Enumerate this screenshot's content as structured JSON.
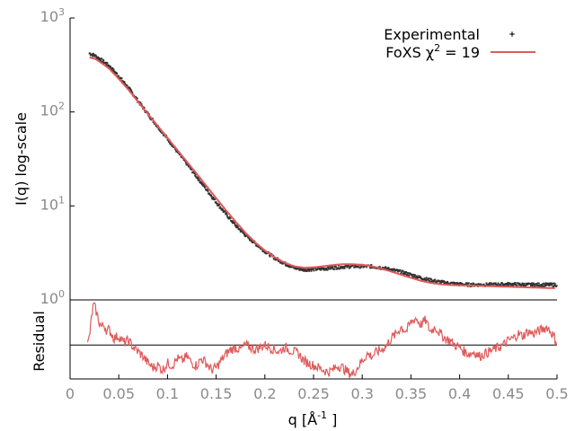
{
  "chart_data": [
    {
      "type": "line",
      "panel": "main",
      "xlim": [
        0,
        0.5
      ],
      "ylim": [
        1,
        1000
      ],
      "yscale": "log",
      "ylabel": "I(q) log-scale",
      "ytick_labels": [
        {
          "value": 1,
          "base": "10",
          "exp": "0"
        },
        {
          "value": 10,
          "base": "10",
          "exp": "1"
        },
        {
          "value": 100,
          "base": "10",
          "exp": "2"
        },
        {
          "value": 1000,
          "base": "10",
          "exp": "3"
        }
      ],
      "legend": {
        "placement": "top-right",
        "experimental_label": "Experimental",
        "fit_label_prefix": "FoXS χ",
        "fit_label_exp": "2",
        "fit_label_suffix": " = 19"
      },
      "colors": {
        "experimental": "#333333",
        "fit": "#e05a5a",
        "axis": "#000000",
        "ticks": "#8a8a8a"
      },
      "series": [
        {
          "name": "Experimental",
          "style": "points",
          "x": [
            0.02,
            0.025,
            0.03,
            0.04,
            0.05,
            0.06,
            0.07,
            0.08,
            0.09,
            0.1,
            0.11,
            0.12,
            0.13,
            0.14,
            0.15,
            0.16,
            0.17,
            0.18,
            0.19,
            0.2,
            0.21,
            0.22,
            0.23,
            0.24,
            0.25,
            0.26,
            0.27,
            0.28,
            0.29,
            0.3,
            0.31,
            0.32,
            0.33,
            0.34,
            0.35,
            0.36,
            0.37,
            0.38,
            0.39,
            0.4,
            0.41,
            0.42,
            0.43,
            0.44,
            0.45,
            0.46,
            0.47,
            0.48,
            0.49,
            0.5
          ],
          "values": [
            420,
            400,
            370,
            310,
            240,
            180,
            130,
            95,
            70,
            52,
            38,
            28,
            20.5,
            15,
            11,
            8.2,
            6.2,
            4.9,
            4.0,
            3.3,
            2.8,
            2.45,
            2.2,
            2.1,
            2.12,
            2.15,
            2.2,
            2.25,
            2.28,
            2.28,
            2.27,
            2.2,
            2.1,
            1.98,
            1.85,
            1.72,
            1.62,
            1.55,
            1.5,
            1.47,
            1.45,
            1.45,
            1.45,
            1.46,
            1.47,
            1.46,
            1.45,
            1.45,
            1.45,
            1.45
          ]
        },
        {
          "name": "FoXS",
          "style": "line",
          "x": [
            0.02,
            0.025,
            0.03,
            0.04,
            0.05,
            0.06,
            0.07,
            0.08,
            0.09,
            0.1,
            0.11,
            0.12,
            0.13,
            0.14,
            0.15,
            0.16,
            0.17,
            0.18,
            0.19,
            0.2,
            0.21,
            0.22,
            0.23,
            0.24,
            0.25,
            0.26,
            0.27,
            0.28,
            0.29,
            0.3,
            0.31,
            0.32,
            0.33,
            0.34,
            0.35,
            0.36,
            0.37,
            0.38,
            0.39,
            0.4,
            0.41,
            0.42,
            0.43,
            0.44,
            0.45,
            0.46,
            0.47,
            0.48,
            0.49,
            0.5
          ],
          "values": [
            380,
            370,
            345,
            290,
            225,
            172,
            128,
            95,
            71,
            53,
            39.5,
            29.5,
            22,
            16.3,
            12.1,
            9.0,
            6.8,
            5.2,
            4.1,
            3.35,
            2.85,
            2.5,
            2.28,
            2.2,
            2.22,
            2.28,
            2.35,
            2.4,
            2.4,
            2.36,
            2.28,
            2.15,
            2.0,
            1.85,
            1.72,
            1.6,
            1.52,
            1.47,
            1.44,
            1.43,
            1.42,
            1.41,
            1.4,
            1.39,
            1.38,
            1.37,
            1.36,
            1.35,
            1.34,
            1.33
          ]
        }
      ]
    },
    {
      "type": "line",
      "panel": "residual",
      "xlim": [
        0,
        0.5
      ],
      "ylim": [
        -1.5,
        2.0
      ],
      "xlabel_prefix": "q [Å",
      "xlabel_exp": "-1",
      "xlabel_suffix": " ]",
      "ylabel": "Residual",
      "xticks": [
        0,
        0.05,
        0.1,
        0.15,
        0.2,
        0.25,
        0.3,
        0.35,
        0.4,
        0.45,
        0.5
      ],
      "xtick_labels": [
        "0",
        "0.05",
        "0.1",
        "0.15",
        "0.2",
        "0.25",
        "0.3",
        "0.35",
        "0.4",
        "0.45",
        "0.5"
      ],
      "baseline": 0,
      "series": [
        {
          "x": [
            0.018,
            0.02,
            0.022,
            0.024,
            0.026,
            0.028,
            0.03,
            0.032,
            0.035,
            0.038,
            0.04,
            0.045,
            0.05,
            0.055,
            0.06,
            0.065,
            0.07,
            0.075,
            0.08,
            0.085,
            0.09,
            0.095,
            0.1,
            0.105,
            0.11,
            0.115,
            0.12,
            0.125,
            0.13,
            0.135,
            0.14,
            0.145,
            0.15,
            0.155,
            0.16,
            0.165,
            0.17,
            0.175,
            0.18,
            0.185,
            0.19,
            0.195,
            0.2,
            0.205,
            0.21,
            0.215,
            0.22,
            0.225,
            0.23,
            0.235,
            0.24,
            0.245,
            0.25,
            0.255,
            0.26,
            0.265,
            0.27,
            0.275,
            0.28,
            0.285,
            0.29,
            0.295,
            0.3,
            0.305,
            0.31,
            0.315,
            0.32,
            0.325,
            0.33,
            0.335,
            0.34,
            0.345,
            0.35,
            0.355,
            0.36,
            0.365,
            0.37,
            0.375,
            0.38,
            0.385,
            0.39,
            0.395,
            0.4,
            0.405,
            0.41,
            0.415,
            0.42,
            0.425,
            0.43,
            0.435,
            0.44,
            0.445,
            0.45,
            0.455,
            0.46,
            0.465,
            0.47,
            0.475,
            0.48,
            0.485,
            0.49,
            0.495,
            0.5
          ],
          "values": [
            0.0,
            0.4,
            1.2,
            1.8,
            1.6,
            1.3,
            1.0,
            0.8,
            0.9,
            0.6,
            0.7,
            0.3,
            0.4,
            0.1,
            0.2,
            -0.1,
            -0.3,
            -0.5,
            -0.8,
            -1.0,
            -0.9,
            -1.1,
            -0.8,
            -0.9,
            -0.6,
            -0.7,
            -0.5,
            -0.8,
            -0.9,
            -0.6,
            -0.8,
            -1.1,
            -1.0,
            -0.7,
            -0.4,
            -0.2,
            -0.1,
            -0.2,
            0.0,
            -0.1,
            -0.2,
            -0.1,
            0.0,
            -0.1,
            -0.2,
            -0.3,
            -0.1,
            -0.2,
            -0.3,
            -0.4,
            -0.7,
            -0.8,
            -0.9,
            -1.0,
            -1.1,
            -1.2,
            -1.1,
            -0.9,
            -1.0,
            -1.2,
            -1.3,
            -1.0,
            -0.7,
            -0.4,
            -0.5,
            -0.3,
            -0.2,
            0.0,
            0.3,
            0.5,
            0.8,
            0.6,
            1.0,
            1.2,
            0.9,
            1.1,
            0.6,
            0.8,
            0.5,
            0.3,
            0.2,
            0.0,
            -0.1,
            -0.3,
            -0.4,
            -0.3,
            -0.5,
            -0.4,
            -0.3,
            -0.2,
            -0.1,
            0.0,
            0.2,
            0.3,
            0.5,
            0.4,
            0.6,
            0.5,
            0.6,
            0.7,
            0.8,
            0.5,
            0.1
          ]
        }
      ]
    }
  ]
}
